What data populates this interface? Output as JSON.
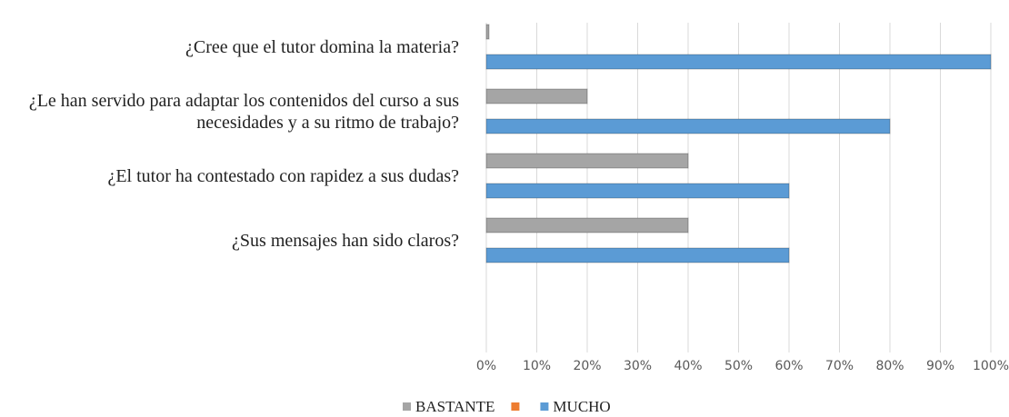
{
  "chart_data": {
    "type": "bar",
    "orientation": "horizontal",
    "categories": [
      "¿Cree que el tutor domina la materia?",
      "¿Le han servido para adaptar los contenidos del curso a sus necesidades y a su ritmo de trabajo?",
      "¿El tutor ha contestado con rapidez a sus dudas?",
      "¿Sus mensajes han sido claros?",
      null
    ],
    "series": [
      {
        "name": "BASTANTE",
        "color": "#a5a5a5",
        "values": [
          0,
          20,
          40,
          40,
          null
        ]
      },
      {
        "name": null,
        "color": "#ed7d31",
        "values": [
          null,
          null,
          null,
          null,
          null
        ]
      },
      {
        "name": "MUCHO",
        "color": "#5b9bd5",
        "values": [
          100,
          80,
          60,
          60,
          null
        ]
      }
    ],
    "xlim": [
      0,
      100
    ],
    "xticks": [
      {
        "value": 0,
        "label": "0%"
      },
      {
        "value": 10,
        "label": "10%"
      },
      {
        "value": 20,
        "label": "20%"
      },
      {
        "value": 30,
        "label": "30%"
      },
      {
        "value": 40,
        "label": "40%"
      },
      {
        "value": 50,
        "label": "50%"
      },
      {
        "value": 60,
        "label": "60%"
      },
      {
        "value": 70,
        "label": "70%"
      },
      {
        "value": 80,
        "label": "80%"
      },
      {
        "value": 90,
        "label": "90%"
      },
      {
        "value": 100,
        "label": "100%"
      }
    ],
    "grid": true,
    "legend": "bottom"
  }
}
